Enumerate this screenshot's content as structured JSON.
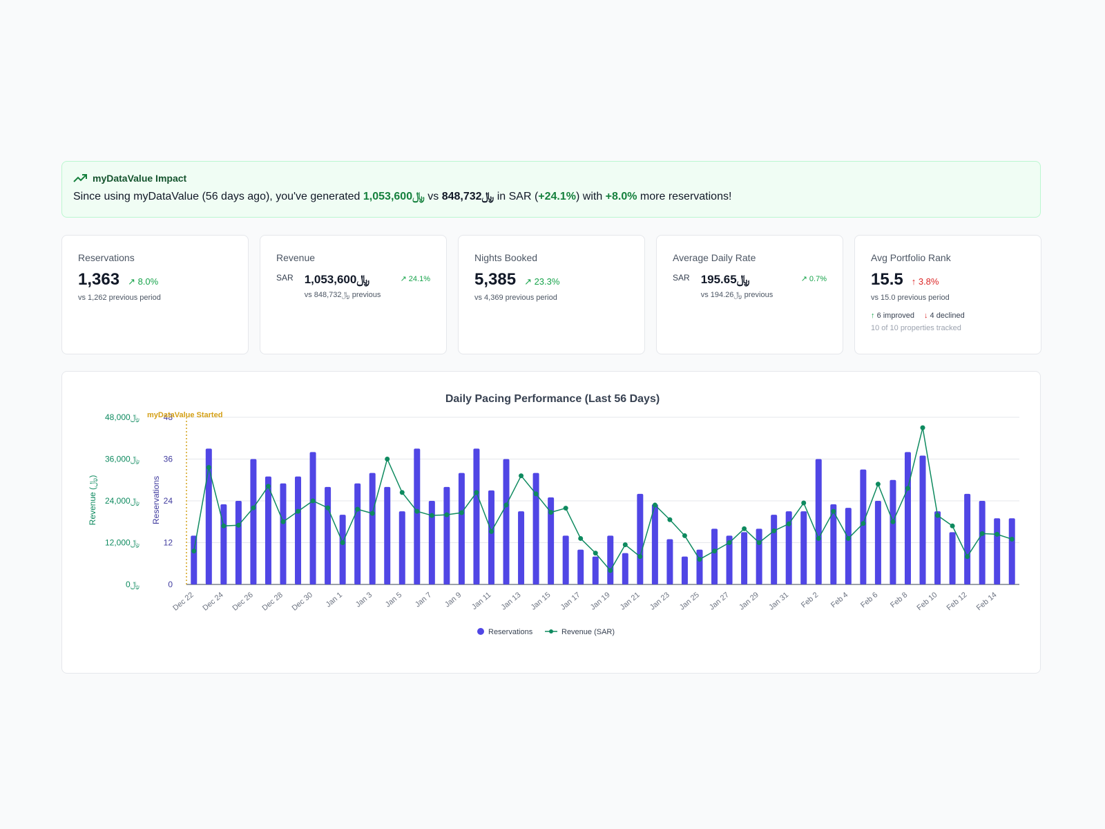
{
  "banner": {
    "title": "myDataValue Impact",
    "text_1": "Since using myDataValue (56 days ago), you've generated ",
    "current_revenue": "1,053,600﷼",
    "text_2": " vs ",
    "previous_revenue": "848,732﷼",
    "text_3": " in SAR (",
    "revenue_change": "+24.1%",
    "text_4": ") with ",
    "reservation_change": "+8.0%",
    "text_5": " more reservations!"
  },
  "cards": {
    "reservations": {
      "title": "Reservations",
      "value": "1,363",
      "trend": "8.0%",
      "sub": "vs 1,262 previous period"
    },
    "revenue": {
      "title": "Revenue",
      "currency": "SAR",
      "value": "1,053,600﷼",
      "trend": "24.1%",
      "sub": "vs 848,732﷼ previous"
    },
    "nights": {
      "title": "Nights Booked",
      "value": "5,385",
      "trend": "23.3%",
      "sub": "vs 4,369 previous period"
    },
    "adr": {
      "title": "Average Daily Rate",
      "currency": "SAR",
      "value": "195.65﷼",
      "trend": "0.7%",
      "sub": "vs 194.26﷼ previous"
    },
    "rank": {
      "title": "Avg Portfolio Rank",
      "value": "15.5",
      "trend": "3.8%",
      "sub": "vs 15.0 previous period",
      "improved": "6 improved",
      "declined": "4 declined",
      "tracked": "10 of 10 properties tracked"
    }
  },
  "colors": {
    "bar": "#5046e5",
    "line": "#0e8a5f",
    "marker": "#d4a017",
    "up": "#16a34a",
    "down": "#dc2626"
  },
  "chart_data": {
    "type": "bar",
    "title": "Daily Pacing Performance (Last 56 Days)",
    "annotation": "myDataValue Started",
    "y_left_label": "Revenue (﷼)",
    "y_right_label": "Reservations",
    "y_left_ticks": [
      "48,000﷼",
      "36,000﷼",
      "24,000﷼",
      "12,000﷼",
      "0﷼"
    ],
    "y_right_ticks": [
      "48",
      "36",
      "24",
      "12",
      "0"
    ],
    "ylim_reservations": [
      0,
      48
    ],
    "ylim_revenue": [
      0,
      48000
    ],
    "x_tick_labels": [
      "Dec 22",
      "Dec 24",
      "Dec 26",
      "Dec 28",
      "Dec 30",
      "Jan 1",
      "Jan 3",
      "Jan 5",
      "Jan 7",
      "Jan 9",
      "Jan 11",
      "Jan 13",
      "Jan 15",
      "Jan 17",
      "Jan 19",
      "Jan 21",
      "Jan 23",
      "Jan 25",
      "Jan 27",
      "Jan 29",
      "Jan 31",
      "Feb 2",
      "Feb 4",
      "Feb 6",
      "Feb 8",
      "Feb 10",
      "Feb 12",
      "Feb 14"
    ],
    "legend": [
      "Reservations",
      "Revenue (SAR)"
    ],
    "legend_position": "bottom",
    "series": [
      {
        "name": "Reservations",
        "type": "bar",
        "values": [
          14,
          39,
          23,
          24,
          36,
          31,
          29,
          31,
          38,
          28,
          20,
          29,
          32,
          28,
          21,
          39,
          24,
          28,
          32,
          39,
          27,
          36,
          21,
          32,
          25,
          14,
          10,
          8,
          14,
          9,
          26,
          23,
          13,
          8,
          10,
          16,
          14,
          15,
          16,
          20,
          21,
          21,
          36,
          23,
          22,
          33,
          24,
          30,
          38,
          37,
          21,
          15,
          26,
          24,
          19,
          19
        ]
      },
      {
        "name": "Revenue (SAR)",
        "type": "line",
        "values": [
          9600,
          33600,
          16800,
          17000,
          22000,
          28200,
          18000,
          21000,
          24000,
          22000,
          12000,
          21600,
          20400,
          36000,
          26400,
          21000,
          19800,
          20000,
          20600,
          26400,
          15200,
          22800,
          31200,
          26000,
          20700,
          21900,
          13200,
          9000,
          4000,
          11400,
          8000,
          22800,
          18600,
          14000,
          7200,
          9600,
          12000,
          16000,
          12000,
          15400,
          17400,
          23400,
          13200,
          21000,
          13200,
          17500,
          28800,
          18000,
          27600,
          45000,
          19800,
          16800,
          8000,
          14600,
          14400,
          13000
        ]
      }
    ]
  }
}
